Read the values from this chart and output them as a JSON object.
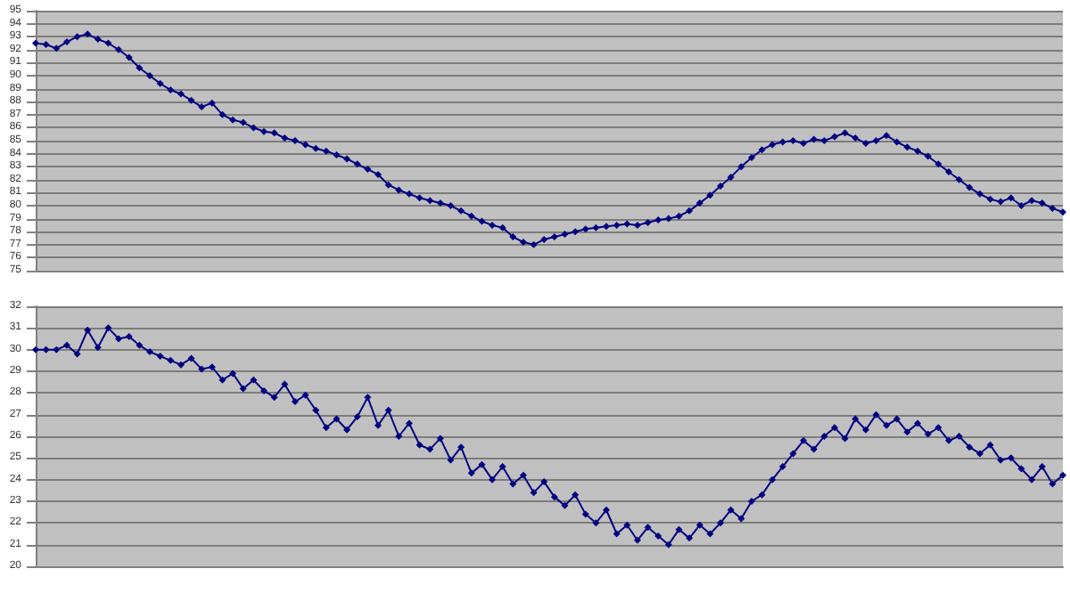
{
  "chart_data": [
    {
      "type": "line",
      "categories": [
        null,
        null,
        null,
        null,
        null,
        null,
        null,
        null,
        null,
        null,
        null,
        null,
        null,
        null,
        null,
        null,
        null,
        null,
        null,
        null,
        null,
        null,
        null,
        null,
        null,
        null,
        null,
        null,
        null,
        null,
        null,
        null,
        null,
        null,
        null,
        null,
        null,
        null,
        null,
        null,
        null,
        null,
        null,
        null,
        null,
        null,
        null,
        null,
        null,
        null,
        null,
        null,
        null,
        null,
        null,
        null,
        null,
        null,
        null,
        null,
        null,
        null,
        null,
        null,
        null,
        null,
        null,
        null,
        null,
        null,
        null,
        null,
        null,
        null,
        null,
        null,
        null,
        null,
        null,
        null,
        null,
        null,
        null,
        null,
        null,
        null,
        null,
        null,
        null,
        null,
        null,
        null,
        null,
        null,
        null,
        null,
        null,
        null,
        null,
        null
      ],
      "series": [
        {
          "color": "#000080",
          "values": [
            92.5,
            92.4,
            92.1,
            92.6,
            93.0,
            93.2,
            92.8,
            92.5,
            92.0,
            91.4,
            90.6,
            90.0,
            89.4,
            88.9,
            88.6,
            88.1,
            87.6,
            87.9,
            87.0,
            86.6,
            86.4,
            86.0,
            85.7,
            85.6,
            85.2,
            85.0,
            84.7,
            84.4,
            84.2,
            83.9,
            83.6,
            83.2,
            82.8,
            82.4,
            81.6,
            81.2,
            80.9,
            80.6,
            80.4,
            80.2,
            80.0,
            79.6,
            79.2,
            78.8,
            78.5,
            78.3,
            77.6,
            77.2,
            77.0,
            77.4,
            77.6,
            77.8,
            78.0,
            78.2,
            78.3,
            78.4,
            78.5,
            78.6,
            78.5,
            78.7,
            78.9,
            79.0,
            79.2,
            79.6,
            80.2,
            80.8,
            81.5,
            82.2,
            83.0,
            83.7,
            84.3,
            84.7,
            84.9,
            85.0,
            84.8,
            85.1,
            85.0,
            85.3,
            85.6,
            85.2,
            84.8,
            85.0,
            85.4,
            84.9,
            84.5,
            84.2,
            83.8,
            83.2,
            82.6,
            82.0,
            81.4,
            80.9,
            80.5,
            80.3,
            80.6,
            80.0,
            80.4,
            80.2,
            79.8,
            79.5
          ]
        }
      ],
      "ylim": [
        75,
        95
      ],
      "yticks": [
        75,
        76,
        77,
        78,
        79,
        80,
        81,
        82,
        83,
        84,
        85,
        86,
        87,
        88,
        89,
        90,
        91,
        92,
        93,
        94,
        95
      ],
      "grid": "y",
      "marker": "diamond",
      "line_style": "solid",
      "tick_labels": "y"
    },
    {
      "type": "line",
      "categories": [
        null,
        null,
        null,
        null,
        null,
        null,
        null,
        null,
        null,
        null,
        null,
        null,
        null,
        null,
        null,
        null,
        null,
        null,
        null,
        null,
        null,
        null,
        null,
        null,
        null,
        null,
        null,
        null,
        null,
        null,
        null,
        null,
        null,
        null,
        null,
        null,
        null,
        null,
        null,
        null,
        null,
        null,
        null,
        null,
        null,
        null,
        null,
        null,
        null,
        null,
        null,
        null,
        null,
        null,
        null,
        null,
        null,
        null,
        null,
        null,
        null,
        null,
        null,
        null,
        null,
        null,
        null,
        null,
        null,
        null,
        null,
        null,
        null,
        null,
        null,
        null,
        null,
        null,
        null,
        null,
        null,
        null,
        null,
        null,
        null,
        null,
        null,
        null,
        null,
        null,
        null,
        null,
        null,
        null,
        null,
        null,
        null,
        null,
        null,
        null
      ],
      "series": [
        {
          "color": "#000080",
          "values": [
            30.0,
            30.0,
            30.0,
            30.2,
            29.8,
            30.9,
            30.1,
            31.0,
            30.5,
            30.6,
            30.2,
            29.9,
            29.7,
            29.5,
            29.3,
            29.6,
            29.1,
            29.2,
            28.6,
            28.9,
            28.2,
            28.6,
            28.1,
            27.8,
            28.4,
            27.6,
            27.9,
            27.2,
            26.4,
            26.8,
            26.3,
            26.9,
            27.8,
            26.5,
            27.2,
            26.0,
            26.6,
            25.6,
            25.4,
            25.9,
            24.9,
            25.5,
            24.3,
            24.7,
            24.0,
            24.6,
            23.8,
            24.2,
            23.4,
            23.9,
            23.2,
            22.8,
            23.3,
            22.4,
            22.0,
            22.6,
            21.5,
            21.9,
            21.2,
            21.8,
            21.4,
            21.0,
            21.7,
            21.3,
            21.9,
            21.5,
            22.0,
            22.6,
            22.2,
            23.0,
            23.3,
            24.0,
            24.6,
            25.2,
            25.8,
            25.4,
            26.0,
            26.4,
            25.9,
            26.8,
            26.3,
            27.0,
            26.5,
            26.8,
            26.2,
            26.6,
            26.1,
            26.4,
            25.8,
            26.0,
            25.5,
            25.2,
            25.6,
            24.9,
            25.0,
            24.5,
            24.0,
            24.6,
            23.8,
            24.2
          ]
        }
      ],
      "ylim": [
        20,
        32
      ],
      "yticks": [
        20,
        21,
        22,
        23,
        24,
        25,
        26,
        27,
        28,
        29,
        30,
        31,
        32
      ],
      "grid": "y",
      "marker": "diamond",
      "line_style": "solid",
      "tick_labels": "y"
    }
  ]
}
